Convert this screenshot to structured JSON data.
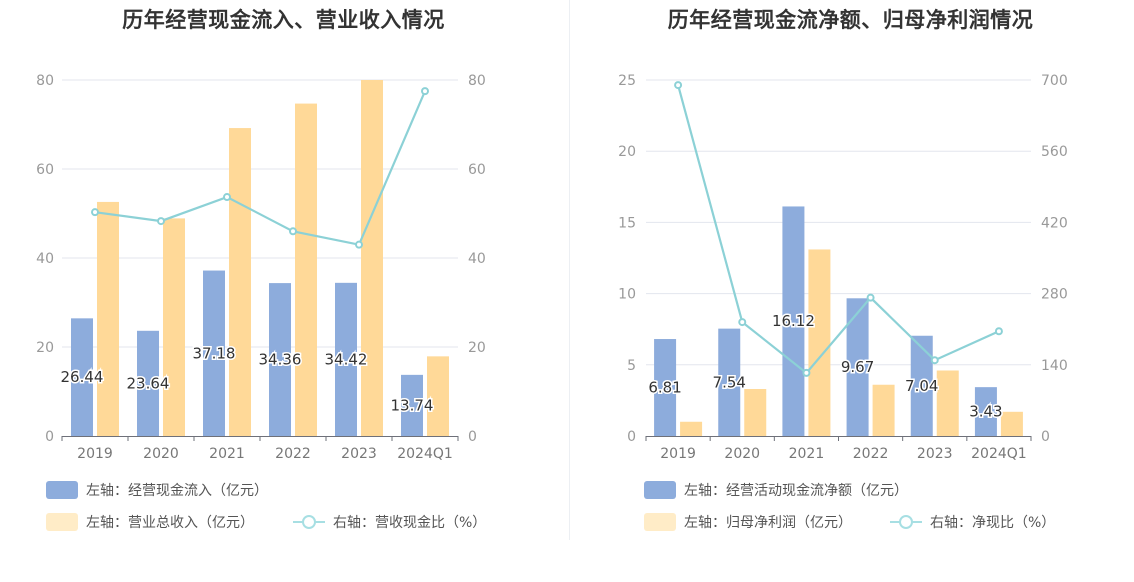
{
  "chart_data": [
    {
      "type": "bar+line",
      "title": "历年经营现金流入、营业收入情况",
      "categories": [
        "2019",
        "2020",
        "2021",
        "2022",
        "2023",
        "2024Q1"
      ],
      "left_axis": {
        "ticks": [
          "0",
          "20",
          "40",
          "60",
          "80"
        ],
        "ylim": [
          0,
          80
        ]
      },
      "right_axis": {
        "ticks": [
          "0",
          "20",
          "40",
          "60",
          "80"
        ],
        "ylim": [
          0,
          80
        ]
      },
      "series": [
        {
          "name": "左轴：经营现金流入（亿元）",
          "kind": "bar",
          "axis": "left",
          "color": "#8dacdc",
          "values": [
            26.44,
            23.64,
            37.18,
            34.36,
            34.42,
            13.74
          ],
          "labels": [
            "26.44",
            "23.64",
            "37.18",
            "34.36",
            "34.42",
            "13.74"
          ]
        },
        {
          "name": "左轴：营业总收入（亿元）",
          "kind": "bar",
          "axis": "left",
          "color": "#ffd998",
          "legend_color": "#ffecc7",
          "values": [
            52.6,
            48.9,
            69.2,
            74.7,
            80.0,
            17.9
          ]
        },
        {
          "name": "右轴：营收现金比（%）",
          "kind": "line",
          "axis": "right",
          "color": "#8cd1d6",
          "values": [
            50.3,
            48.3,
            53.7,
            46.0,
            43.0,
            77.5
          ]
        }
      ],
      "grid": true,
      "legend_position": "bottom-left"
    },
    {
      "type": "bar+line",
      "title": "历年经营现金流净额、归母净利润情况",
      "categories": [
        "2019",
        "2020",
        "2021",
        "2022",
        "2023",
        "2024Q1"
      ],
      "left_axis": {
        "ticks": [
          "0",
          "5",
          "10",
          "15",
          "20",
          "25"
        ],
        "ylim": [
          0,
          25
        ]
      },
      "right_axis": {
        "ticks": [
          "0",
          "140",
          "280",
          "420",
          "560",
          "700"
        ],
        "ylim": [
          0,
          700
        ]
      },
      "series": [
        {
          "name": "左轴：经营活动现金流净额（亿元）",
          "kind": "bar",
          "axis": "left",
          "color": "#8dacdc",
          "values": [
            6.81,
            7.54,
            16.12,
            9.67,
            7.04,
            3.43
          ],
          "labels": [
            "6.81",
            "7.54",
            "16.12",
            "9.67",
            "7.04",
            "3.43"
          ]
        },
        {
          "name": "左轴：归母净利润（亿元）",
          "kind": "bar",
          "axis": "left",
          "color": "#ffd998",
          "legend_color": "#ffecc7",
          "values": [
            1.0,
            3.3,
            13.1,
            3.6,
            4.6,
            1.7
          ]
        },
        {
          "name": "右轴：净现比（%）",
          "kind": "line",
          "axis": "right",
          "color": "#8cd1d6",
          "values": [
            690,
            224,
            124,
            272,
            149,
            206
          ]
        }
      ],
      "grid": true,
      "legend_position": "bottom-left"
    }
  ]
}
